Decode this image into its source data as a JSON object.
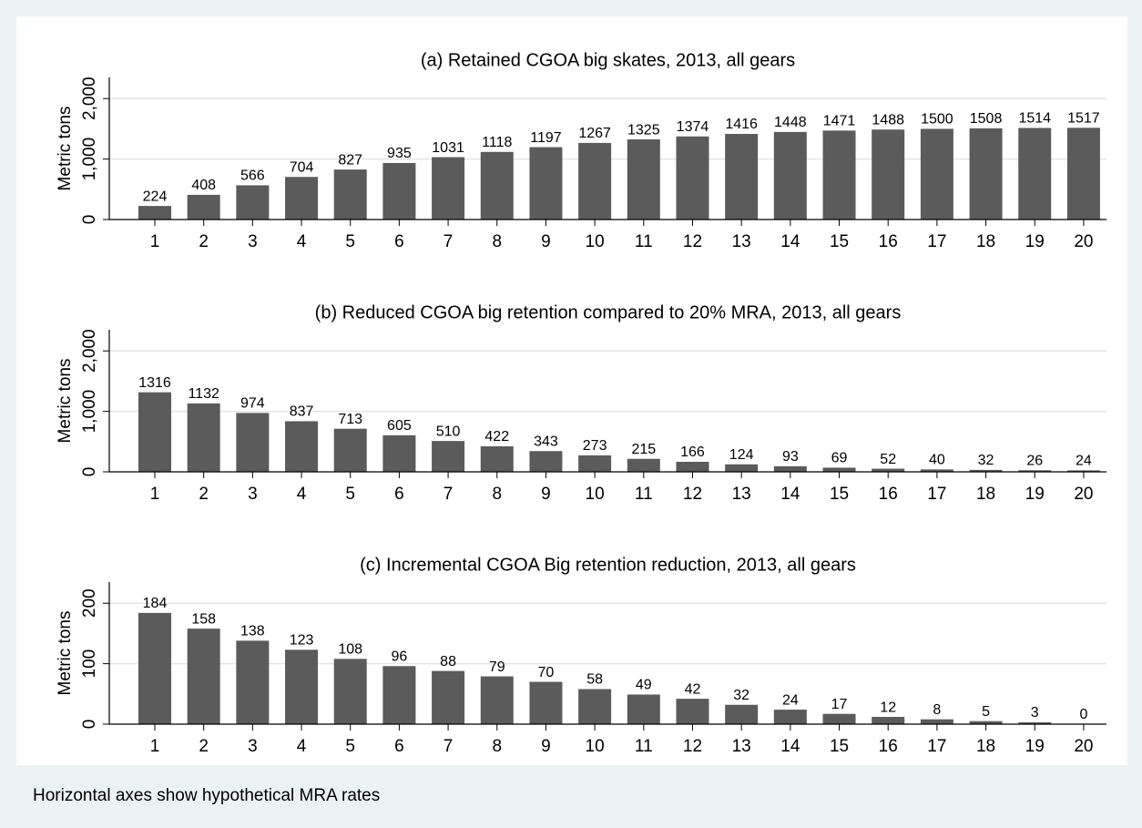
{
  "chart_data": [
    {
      "type": "bar",
      "title": "(a) Retained CGOA big skates, 2013, all gears",
      "y_label": "Metric tons",
      "categories": [
        "1",
        "2",
        "3",
        "4",
        "5",
        "6",
        "7",
        "8",
        "9",
        "10",
        "11",
        "12",
        "13",
        "14",
        "15",
        "16",
        "17",
        "18",
        "19",
        "20"
      ],
      "values": [
        224,
        408,
        566,
        704,
        827,
        935,
        1031,
        1118,
        1197,
        1267,
        1325,
        1374,
        1416,
        1448,
        1471,
        1488,
        1500,
        1508,
        1514,
        1517
      ],
      "color": "#5b5b5b",
      "ylim": [
        0,
        2350
      ],
      "yticks": [
        0,
        {
          "value": 1000,
          "label": "1,000"
        },
        {
          "value": 2000,
          "label": "2,000"
        }
      ],
      "grid": true
    },
    {
      "type": "bar",
      "title": "(b) Reduced CGOA big retention compared to 20% MRA, 2013, all gears",
      "y_label": "Metric tons",
      "categories": [
        "1",
        "2",
        "3",
        "4",
        "5",
        "6",
        "7",
        "8",
        "9",
        "10",
        "11",
        "12",
        "13",
        "14",
        "15",
        "16",
        "17",
        "18",
        "19",
        "20"
      ],
      "values": [
        1316,
        1132,
        974,
        837,
        713,
        605,
        510,
        422,
        343,
        273,
        215,
        166,
        124,
        93,
        69,
        52,
        40,
        32,
        26,
        24
      ],
      "color": "#5b5b5b",
      "ylim": [
        0,
        2350
      ],
      "yticks": [
        0,
        {
          "value": 1000,
          "label": "1,000"
        },
        {
          "value": 2000,
          "label": "2,000"
        }
      ],
      "grid": true
    },
    {
      "type": "bar",
      "title": "(c) Incremental CGOA Big retention reduction, 2013, all gears",
      "y_label": "Metric tons",
      "categories": [
        "1",
        "2",
        "3",
        "4",
        "5",
        "6",
        "7",
        "8",
        "9",
        "10",
        "11",
        "12",
        "13",
        "14",
        "15",
        "16",
        "17",
        "18",
        "19",
        "20"
      ],
      "values": [
        184,
        158,
        138,
        123,
        108,
        96,
        88,
        79,
        70,
        58,
        49,
        42,
        32,
        24,
        17,
        12,
        8,
        5,
        3,
        0
      ],
      "color": "#5b5b5b",
      "ylim": [
        0,
        235
      ],
      "yticks": [
        0,
        100,
        200
      ],
      "grid": true
    }
  ],
  "note": "Horizontal axes show hypothetical MRA rates"
}
